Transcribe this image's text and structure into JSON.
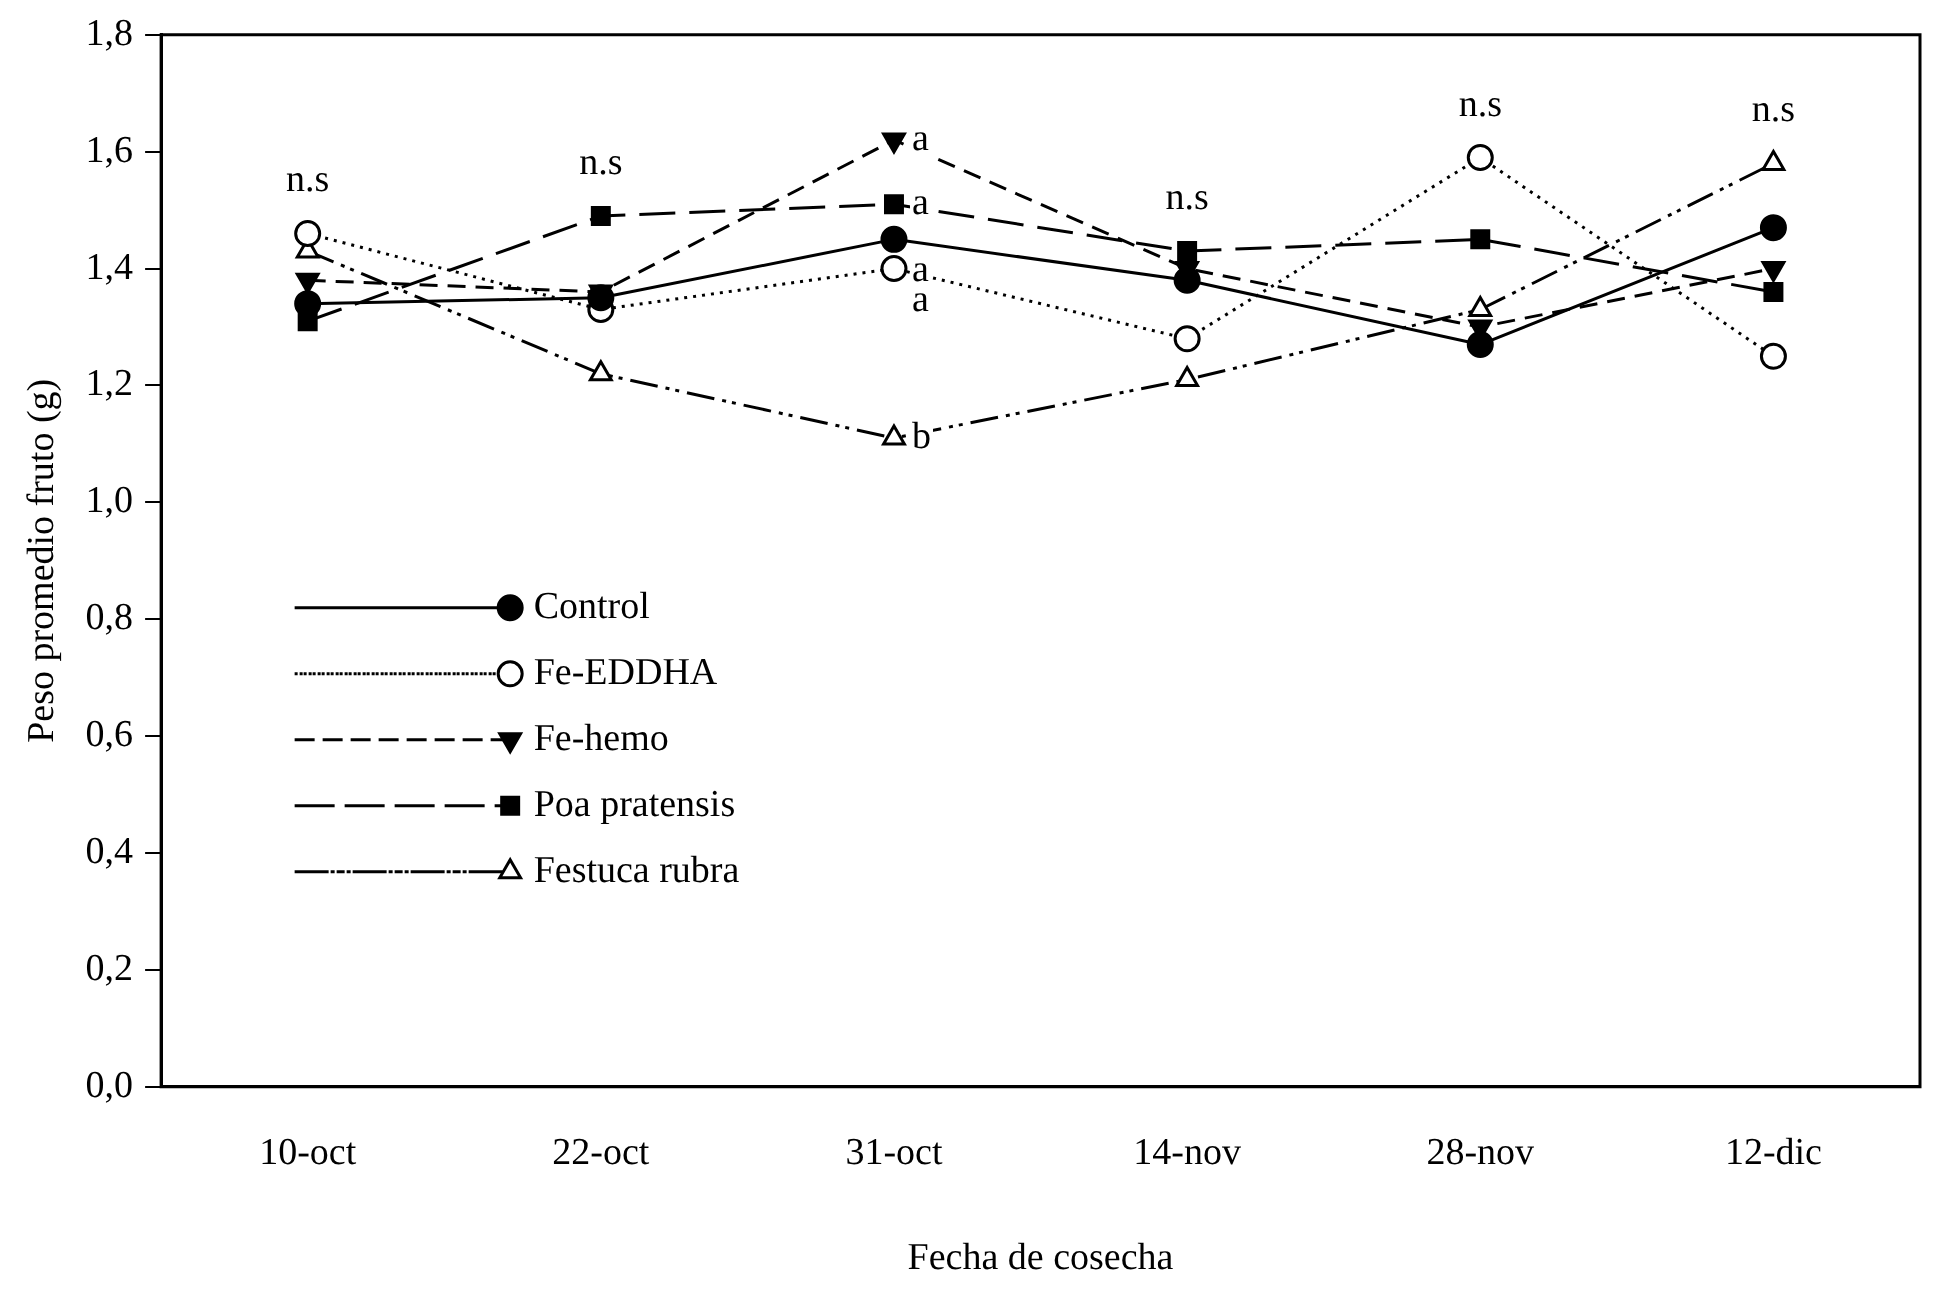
{
  "chart_data": {
    "type": "line",
    "xlabel": "Fecha de cosecha",
    "ylabel": "Peso promedio fruto (g)",
    "categories": [
      "10-oct",
      "22-oct",
      "31-oct",
      "14-nov",
      "28-nov",
      "12-dic"
    ],
    "series": [
      {
        "name": "Control",
        "color": "#000000",
        "marker": "circle",
        "line_style": "solid",
        "values": [
          1.34,
          1.35,
          1.45,
          1.38,
          1.27,
          1.47
        ]
      },
      {
        "name": "Fe-EDDHA",
        "color": "#000000",
        "marker": "circle-open",
        "line_style": "dotted",
        "values": [
          1.46,
          1.33,
          1.4,
          1.28,
          1.59,
          1.25
        ]
      },
      {
        "name": "Fe-hemo",
        "color": "#000000",
        "marker": "triangle-down",
        "line_style": "dashed",
        "values": [
          1.38,
          1.36,
          1.62,
          1.4,
          1.3,
          1.4
        ]
      },
      {
        "name": "Poa pratensis",
        "color": "#000000",
        "marker": "square",
        "line_style": "longdash",
        "values": [
          1.31,
          1.49,
          1.51,
          1.43,
          1.45,
          1.36
        ]
      },
      {
        "name": "Festuca rubra",
        "color": "#000000",
        "marker": "triangle-open",
        "line_style": "dashdot",
        "values": [
          1.43,
          1.22,
          1.11,
          1.21,
          1.33,
          1.58
        ]
      }
    ],
    "ylim": [
      0,
      1.8
    ],
    "yticks": [
      {
        "value": 0,
        "label": "0,0"
      },
      {
        "value": 0.2,
        "label": "0,2"
      },
      {
        "value": 0.4,
        "label": "0,4"
      },
      {
        "value": 0.6,
        "label": "0,6"
      },
      {
        "value": 0.8,
        "label": "0,8"
      },
      {
        "value": 1.0,
        "label": "1,0"
      },
      {
        "value": 1.2,
        "label": "1,2"
      },
      {
        "value": 1.4,
        "label": "1,4"
      },
      {
        "value": 1.6,
        "label": "1,6"
      },
      {
        "value": 1.8,
        "label": "1,8"
      }
    ],
    "grid": false,
    "legend": "left",
    "annotations": [
      {
        "text": "n.s",
        "x": "10-oct"
      },
      {
        "text": "n.s",
        "x": "22-oct"
      },
      {
        "text": "a",
        "x": "31-oct",
        "y": 1.62
      },
      {
        "text": "a",
        "x": "31-oct",
        "y": 1.51
      },
      {
        "text": "a",
        "x": "31-oct",
        "y": 1.45
      },
      {
        "text": "a",
        "x": "31-oct",
        "y": 1.4
      },
      {
        "text": "b",
        "x": "31-oct",
        "y": 1.11
      },
      {
        "text": "n.s",
        "x": "14-nov"
      },
      {
        "text": "n.s",
        "x": "28-nov"
      },
      {
        "text": "n.s",
        "x": "12-dic"
      }
    ]
  }
}
